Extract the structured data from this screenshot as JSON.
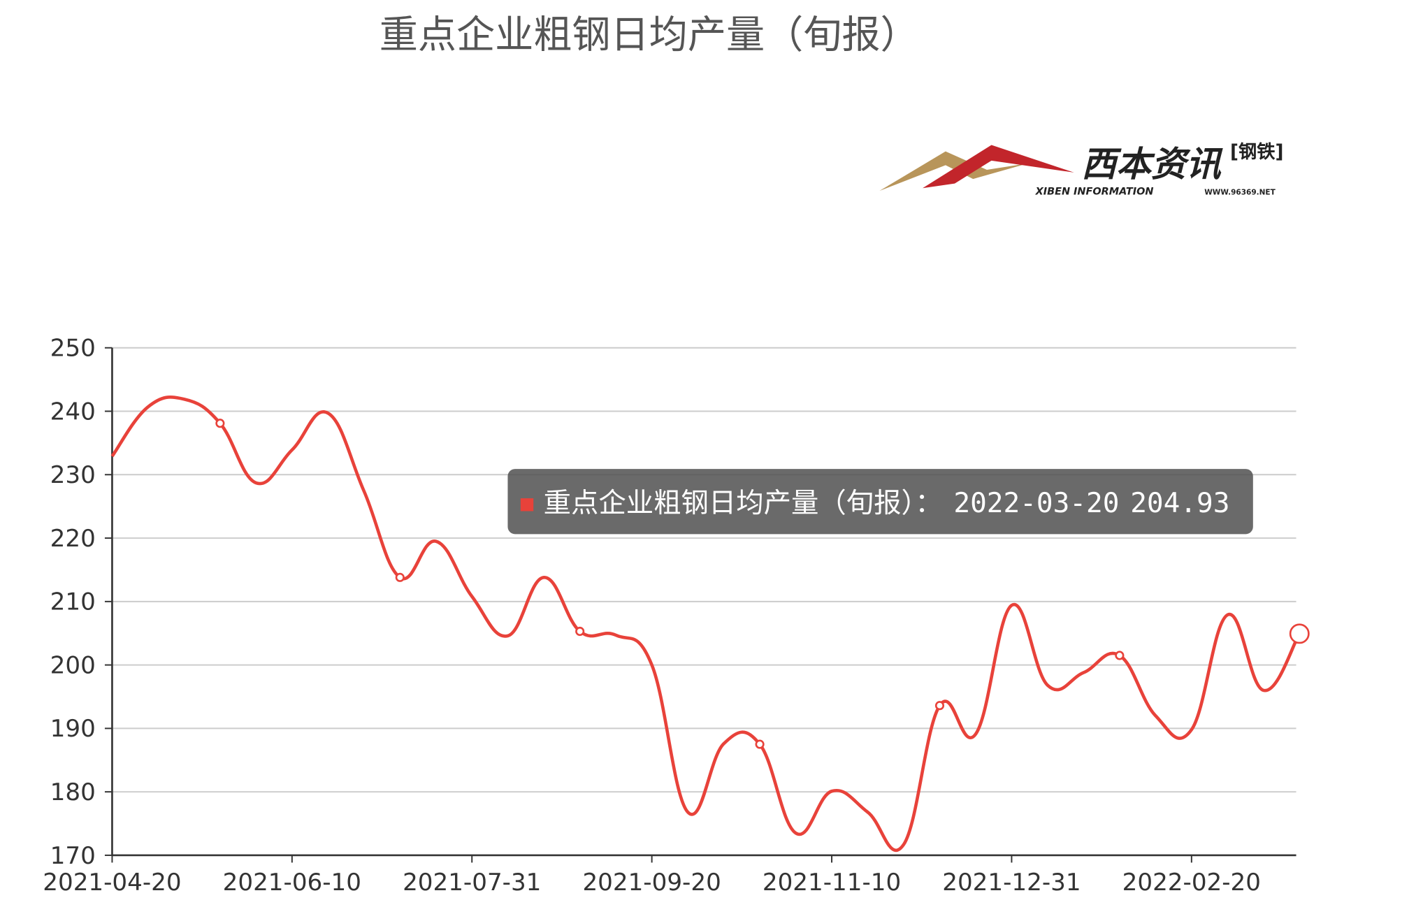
{
  "chart_data": {
    "type": "line",
    "title": "重点企业粗钢日均产量（旬报）",
    "logo": {
      "name": "西本资讯",
      "tag": "[钢铁]",
      "english": "XIBEN INFORMATION",
      "url": "WWW.96369.NET"
    },
    "x": [
      "2021-04-20",
      "2021-04-30",
      "2021-05-10",
      "2021-05-20",
      "2021-05-31",
      "2021-06-10",
      "2021-06-20",
      "2021-06-30",
      "2021-07-10",
      "2021-07-20",
      "2021-07-31",
      "2021-08-10",
      "2021-08-20",
      "2021-08-31",
      "2021-09-10",
      "2021-09-20",
      "2021-09-30",
      "2021-10-10",
      "2021-10-20",
      "2021-10-31",
      "2021-11-10",
      "2021-11-20",
      "2021-11-30",
      "2021-12-10",
      "2021-12-20",
      "2021-12-31",
      "2022-01-10",
      "2022-01-20",
      "2022-01-31",
      "2022-02-10",
      "2022-02-20",
      "2022-02-28",
      "2022-03-10",
      "2022-03-20"
    ],
    "xtick_indices": [
      0,
      5,
      10,
      15,
      20,
      25,
      30
    ],
    "series": [
      {
        "name": "重点企业粗钢日均产量（旬报）",
        "color": "#e8423a",
        "values": [
          232.9,
          240.7,
          241.9,
          238.1,
          228.7,
          233.9,
          239.7,
          227.4,
          213.8,
          219.5,
          210.8,
          204.6,
          213.8,
          205.3,
          204.7,
          200.0,
          176.8,
          187.6,
          187.5,
          173.5,
          180.1,
          176.8,
          171.7,
          193.6,
          189.1,
          209.4,
          196.8,
          198.8,
          201.5,
          192.0,
          189.8,
          207.9,
          196.0,
          204.93
        ]
      }
    ],
    "ylim": [
      170,
      250
    ],
    "yticks": [
      170,
      180,
      190,
      200,
      210,
      220,
      230,
      240,
      250
    ],
    "grid": true,
    "tooltip_separator": "："
  }
}
